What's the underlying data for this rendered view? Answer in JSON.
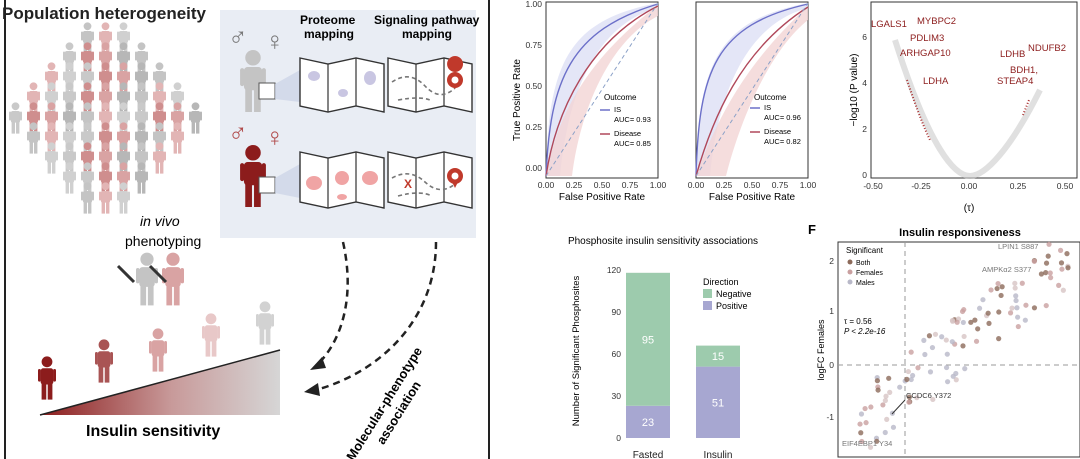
{
  "left_panel": {
    "title": "Population heterogeneity",
    "invivo_italic": "in vivo",
    "invivo_rest": "phenotyping",
    "proteome": [
      "Proteome",
      "mapping"
    ],
    "signaling": [
      "Signaling pathway",
      "mapping"
    ],
    "insulin_sensitivity": "Insulin sensitivity",
    "molecular_phenotype": [
      "Molecular-phenotype",
      "association"
    ],
    "male_symbol": "♂",
    "female_symbol": "♀",
    "x_mark": "X",
    "colors": {
      "dark_red": "#8c1c1c",
      "light_red": "#d9a3a3",
      "grey": "#c4c4c4",
      "pale_blue": "#e7ecf4"
    }
  },
  "roc1": {
    "ylabel": "True Positive Rate",
    "xlabel": "False Positive Rate",
    "xticks": [
      "0.00",
      "0.25",
      "0.50",
      "0.75",
      "1.00"
    ],
    "yticks": [
      "0.00",
      "0.25",
      "0.50",
      "0.75",
      "1.00"
    ],
    "legend_title": "Outcome",
    "is_label": "IS",
    "is_auc": "AUC= 0.93",
    "disease_label": "Disease",
    "disease_auc": "AUC= 0.85"
  },
  "roc2": {
    "xlabel": "False Positive Rate",
    "xticks": [
      "0.00",
      "0.25",
      "0.50",
      "0.75",
      "1.00"
    ],
    "legend_title": "Outcome",
    "is_label": "IS",
    "is_auc": "AUC= 0.96",
    "disease_label": "Disease",
    "disease_auc": "AUC= 0.82"
  },
  "volcano": {
    "ylabel": "−log10 (P value)",
    "xlabel": "(τ)",
    "xticks": [
      "-0.50",
      "-0.25",
      "0.00",
      "0.25",
      "0.50"
    ],
    "yticks": [
      "0",
      "2",
      "4",
      "6"
    ],
    "labels": [
      "LGALS1",
      "MYBPC2",
      "PDLIM3",
      "ARHGAP10",
      "LDHA",
      "LDHB",
      "NDUFB2",
      "BDH1,",
      "STEAP4"
    ]
  },
  "bar_chart": {
    "title": "Phosphosite insulin sensitivity associations",
    "ylabel": "Number of Significant Phosphosites",
    "legend_title": "Direction",
    "negative_label": "Negative",
    "positive_label": "Positive",
    "yticks": [
      "0",
      "30",
      "60",
      "90",
      "120"
    ],
    "data_labels": {
      "fasted_negative": "95",
      "fasted_positive": "23",
      "insulin_negative": "15",
      "insulin_positive": "51"
    }
  },
  "chart_data": {
    "type": "bar",
    "title": "Phosphosite insulin sensitivity associations",
    "ylabel": "Number of Significant Phosphosites",
    "categories": [
      "Fasted",
      "Insulin"
    ],
    "stacked": true,
    "series": [
      {
        "name": "Negative",
        "values": [
          95,
          15
        ],
        "color": "#9dcbad"
      },
      {
        "name": "Positive",
        "values": [
          23,
          51
        ],
        "color": "#a7a7d1"
      }
    ],
    "ylim": [
      0,
      125
    ],
    "legend": "right"
  },
  "scatter": {
    "panel_letter": "F",
    "title": "Insulin responsiveness",
    "ylabel": "logFC Females",
    "legend_title": "Significant",
    "legend_items": [
      "Both",
      "Females",
      "Males"
    ],
    "tau": "τ = 0.56",
    "p": "P < 2.2e-16",
    "yticks": [
      "2",
      "1",
      "0",
      "-1"
    ],
    "labels": {
      "lpin": "LPIN1 S887",
      "ampk": "AMPKα2 S377",
      "ccdc": "CCDC6 Y372",
      "eif": "EIF4EBP1 Y34"
    }
  }
}
